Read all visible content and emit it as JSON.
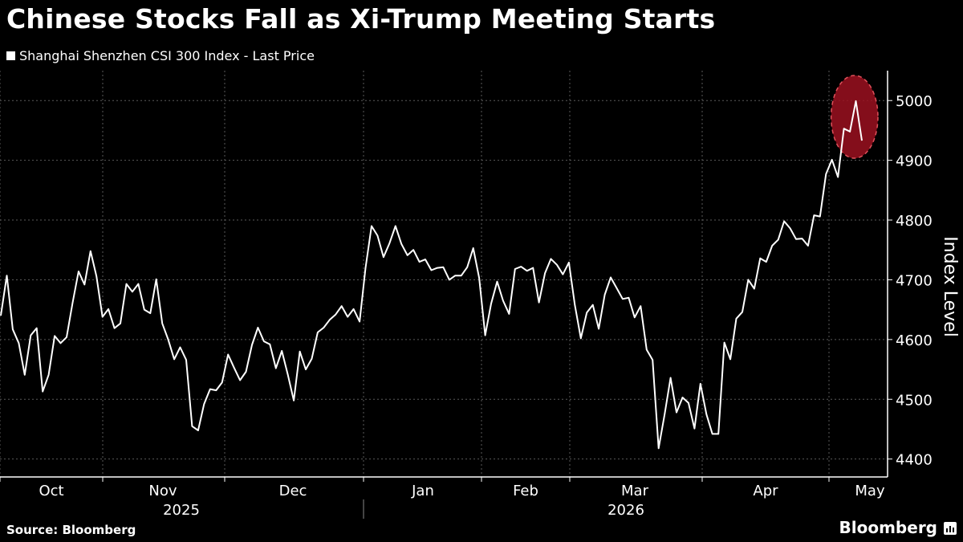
{
  "title": "Chinese Stocks Fall as Xi-Trump Meeting Starts",
  "legend_label": "Shanghai Shenzhen CSI 300 Index - Last Price",
  "source": "Source: Bloomberg",
  "brand": "Bloomberg",
  "colors": {
    "background": "#000000",
    "line": "#ffffff",
    "grid": "#5a5a5a",
    "highlight": "#9b1020"
  },
  "chart_data": {
    "type": "line",
    "ylabel": "Index Level",
    "ylim": [
      4370,
      5050
    ],
    "yticks": [
      4400,
      4500,
      4600,
      4700,
      4800,
      4900,
      5000
    ],
    "grid": true,
    "legend_position": "top-left",
    "x_month_labels": [
      "Oct",
      "Nov",
      "Dec",
      "Jan",
      "Feb",
      "Mar",
      "Apr",
      "May"
    ],
    "x_year_labels": [
      "2025",
      "2026"
    ],
    "series": [
      {
        "values": [
          4640,
          4707,
          4617,
          4594,
          4541,
          4607,
          4619,
          4513,
          4541,
          4606,
          4594,
          4604,
          4661,
          4714,
          4692,
          4748,
          4706,
          4638,
          4651,
          4619,
          4627,
          4693,
          4680,
          4693,
          4650,
          4644,
          4701,
          4627,
          4600,
          4567,
          4587,
          4566,
          4455,
          4448,
          4492,
          4517,
          4515,
          4528,
          4575,
          4553,
          4532,
          4546,
          4591,
          4620,
          4597,
          4592,
          4552,
          4581,
          4541,
          4498,
          4580,
          4550,
          4568,
          4612,
          4620,
          4633,
          4642,
          4656,
          4638,
          4651,
          4630,
          4720,
          4790,
          4774,
          4738,
          4761,
          4790,
          4760,
          4741,
          4750,
          4730,
          4734,
          4716,
          4720,
          4721,
          4700,
          4707,
          4707,
          4721,
          4753,
          4703,
          4607,
          4660,
          4697,
          4665,
          4643,
          4718,
          4722,
          4715,
          4720,
          4662,
          4711,
          4735,
          4725,
          4709,
          4729,
          4658,
          4602,
          4645,
          4658,
          4618,
          4675,
          4704,
          4686,
          4668,
          4670,
          4637,
          4656,
          4583,
          4566,
          4418,
          4474,
          4536,
          4478,
          4503,
          4494,
          4451,
          4526,
          4475,
          4442,
          4442,
          4595,
          4567,
          4635,
          4646,
          4700,
          4685,
          4736,
          4730,
          4757,
          4767,
          4798,
          4786,
          4768,
          4769,
          4757,
          4808,
          4806,
          4877,
          4901,
          4872,
          4953,
          4948,
          4999,
          4933
        ],
        "highlight": {
          "start_index": 141,
          "end_index": 144
        }
      }
    ]
  }
}
